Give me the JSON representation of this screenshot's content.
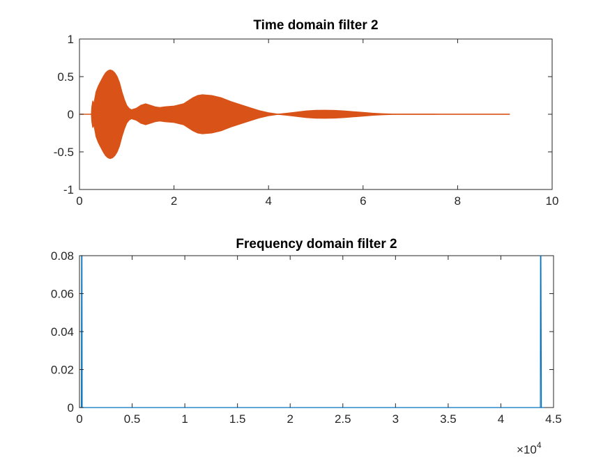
{
  "chart_data": [
    {
      "type": "area",
      "title": "Time domain filter 2",
      "xlabel": "",
      "ylabel": "",
      "xlim": [
        0,
        10
      ],
      "ylim": [
        -1,
        1
      ],
      "xticks": [
        0,
        2,
        4,
        6,
        8,
        10
      ],
      "xtick_labels": [
        "0",
        "2",
        "4",
        "6",
        "8",
        "10"
      ],
      "yticks": [
        -1,
        -0.5,
        0,
        0.5,
        1
      ],
      "ytick_labels": [
        "-1",
        "-0.5",
        "0",
        "0.5",
        "1"
      ],
      "grid": false,
      "series": [
        {
          "color": "#D95319",
          "style": "symmetric-envelope",
          "x": [
            0,
            0.25,
            0.26,
            0.28,
            0.3,
            0.32,
            0.35,
            0.4,
            0.45,
            0.5,
            0.55,
            0.6,
            0.65,
            0.7,
            0.75,
            0.8,
            0.85,
            0.9,
            0.95,
            1.0,
            1.05,
            1.1,
            1.2,
            1.3,
            1.4,
            1.5,
            1.6,
            1.7,
            1.8,
            2.0,
            2.2,
            2.4,
            2.5,
            2.6,
            2.8,
            3.0,
            3.2,
            3.4,
            3.6,
            3.8,
            4.0,
            4.2,
            4.4,
            4.6,
            4.8,
            5.0,
            5.2,
            5.4,
            5.6,
            5.8,
            6.0,
            6.2,
            6.4,
            6.6,
            6.8,
            7.0,
            7.5,
            8.0,
            8.5,
            9.0,
            9.1
          ],
          "y": [
            0,
            0,
            0.1,
            0.18,
            0.14,
            0.2,
            0.3,
            0.38,
            0.44,
            0.5,
            0.55,
            0.58,
            0.59,
            0.58,
            0.55,
            0.5,
            0.42,
            0.3,
            0.2,
            0.12,
            0.08,
            0.06,
            0.08,
            0.12,
            0.14,
            0.12,
            0.1,
            0.09,
            0.1,
            0.11,
            0.14,
            0.22,
            0.25,
            0.26,
            0.25,
            0.22,
            0.17,
            0.13,
            0.09,
            0.05,
            0.02,
            0.003,
            0.015,
            0.03,
            0.045,
            0.053,
            0.055,
            0.052,
            0.045,
            0.035,
            0.025,
            0.015,
            0.008,
            0.004,
            0.0025,
            0.002,
            0.0015,
            0.001,
            0.001,
            0.001,
            0.001
          ]
        }
      ]
    },
    {
      "type": "line",
      "title": "Frequency domain filter 2",
      "xlabel": "",
      "ylabel": "",
      "xlim": [
        0,
        45000
      ],
      "ylim": [
        0,
        0.08
      ],
      "xticks": [
        0,
        5000,
        10000,
        15000,
        20000,
        25000,
        30000,
        35000,
        40000,
        45000
      ],
      "xtick_labels": [
        "0",
        "0.5",
        "1",
        "1.5",
        "2",
        "2.5",
        "3",
        "3.5",
        "4",
        "4.5"
      ],
      "x_exponent_base": "×10",
      "x_exponent_power": "4",
      "yticks": [
        0,
        0.02,
        0.04,
        0.06,
        0.08
      ],
      "ytick_labels": [
        "0",
        "0.02",
        "0.04",
        "0.06",
        "0.08"
      ],
      "grid": false,
      "series": [
        {
          "color": "#0072BD",
          "x": [
            0,
            180,
            200,
            240,
            260,
            300,
            43700,
            43750,
            43760,
            43800,
            43850,
            44100
          ],
          "y": [
            0,
            0,
            0.08,
            0.08,
            0,
            0,
            0,
            0,
            0.08,
            0.08,
            0,
            0
          ]
        }
      ]
    }
  ]
}
